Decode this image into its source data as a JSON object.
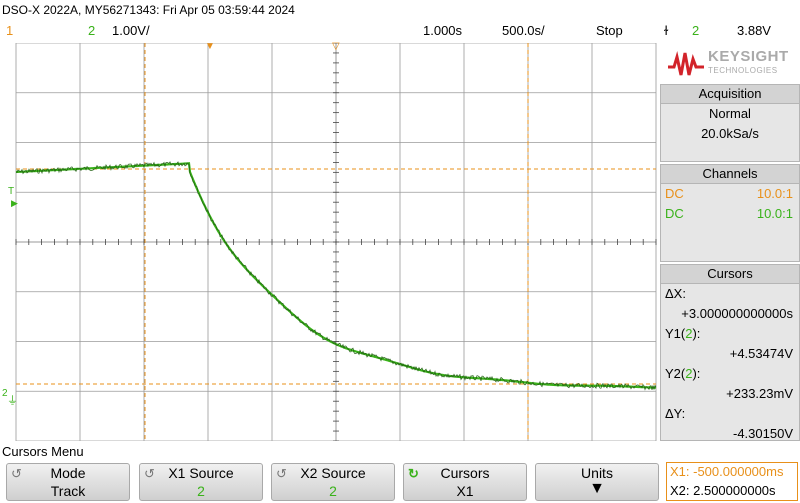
{
  "header": {
    "title": "DSO-X 2022A, MY56271343: Fri Apr 05 03:59:44 2024",
    "ch1_number": "1",
    "ch2_number": "2",
    "ch2_scale": "1.00V/",
    "time_ref": "1.000s",
    "time_scale": "500.0s/",
    "run_state": "Stop",
    "trigger_symbol": "ɫ",
    "trigger_source": "2",
    "trigger_level": "3.88V"
  },
  "brand": {
    "name": "KEYSIGHT",
    "sub": "TECHNOLOGIES",
    "color": "#d2232a"
  },
  "acquisition": {
    "title": "Acquisition",
    "mode": "Normal",
    "rate": "20.0kSa/s"
  },
  "channels": {
    "title": "Channels",
    "ch1_coupling": "DC",
    "ch1_probe": "10.0:1",
    "ch2_coupling": "DC",
    "ch2_probe": "10.0:1"
  },
  "cursors": {
    "title": "Cursors",
    "dx_label": "ΔX:",
    "dx_value": "+3.000000000000s",
    "y1_label_pre": "Y1(",
    "y1_channel": "2",
    "y1_label_post": "):",
    "y1_value": "+4.53474V",
    "y2_label_pre": "Y2(",
    "y2_channel": "2",
    "y2_label_post": "):",
    "y2_value": "+233.23mV",
    "dy_label": "ΔY:",
    "dy_value": "-4.30150V"
  },
  "screen": {
    "trigger_marker": "T",
    "ch2_marker": "2"
  },
  "menu": {
    "title": "Cursors Menu",
    "softkeys": [
      {
        "label": "Mode",
        "value": "Track"
      },
      {
        "label": "X1 Source",
        "value": "2"
      },
      {
        "label": "X2 Source",
        "value": "2"
      },
      {
        "label": "Cursors",
        "value": "X1"
      },
      {
        "label": "Units",
        "value": ""
      }
    ],
    "x1_readout": "X1: -500.000000ms",
    "x2_readout": "X2: 2.500000000s"
  },
  "colors": {
    "ch1": "#e8901a",
    "ch2": "#3ab21a",
    "grid": "#9a9a9a"
  }
}
